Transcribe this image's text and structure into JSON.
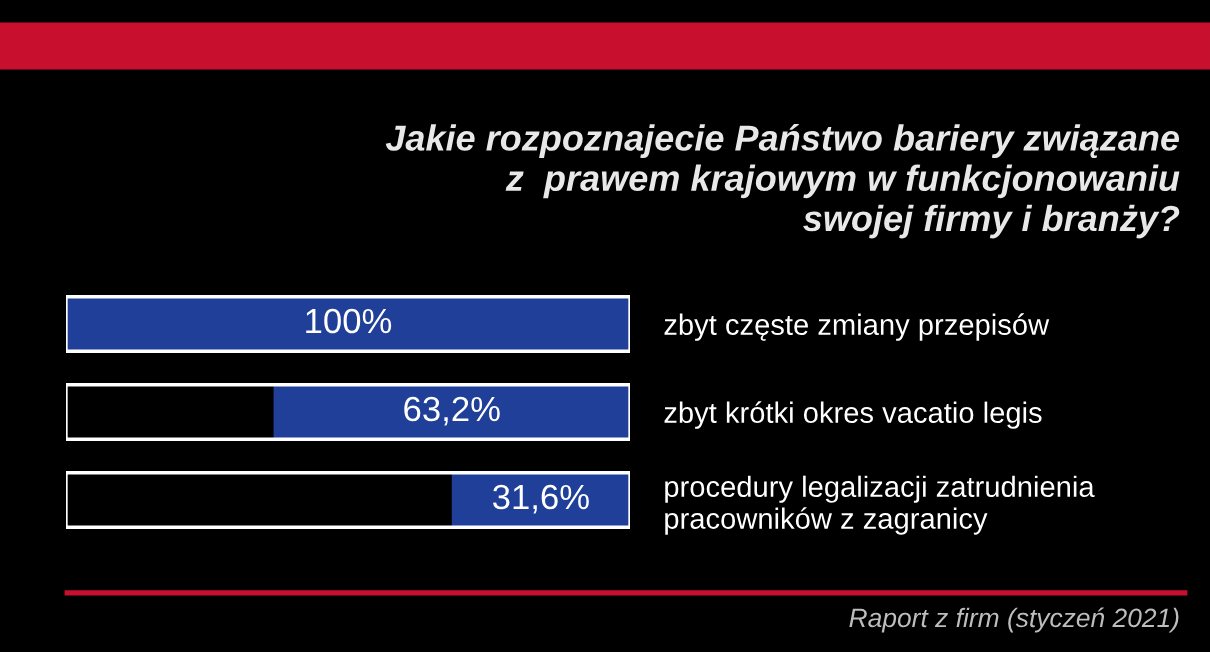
{
  "chart_data": {
    "type": "bar",
    "orientation": "horizontal",
    "title": "Jakie rozpoznajecie Państwo bariery związane\nz  prawem krajowym w funkcjonowaniu\nswojej firmy i branży?",
    "categories": [
      "zbyt częste zmiany przepisów",
      "zbyt krótki okres vacatio legis",
      "procedury legalizacji zatrudnienia\npracowników z zagranicy"
    ],
    "values": [
      100,
      63.2,
      31.6
    ],
    "value_labels": [
      "100%",
      "63,2%",
      "31,6%"
    ],
    "color": "#1f3f99",
    "xlim": [
      100,
      0
    ],
    "tick_labels": "y",
    "grid": false,
    "annotations": [
      "Raport z firm (styczeń 2021)"
    ]
  }
}
